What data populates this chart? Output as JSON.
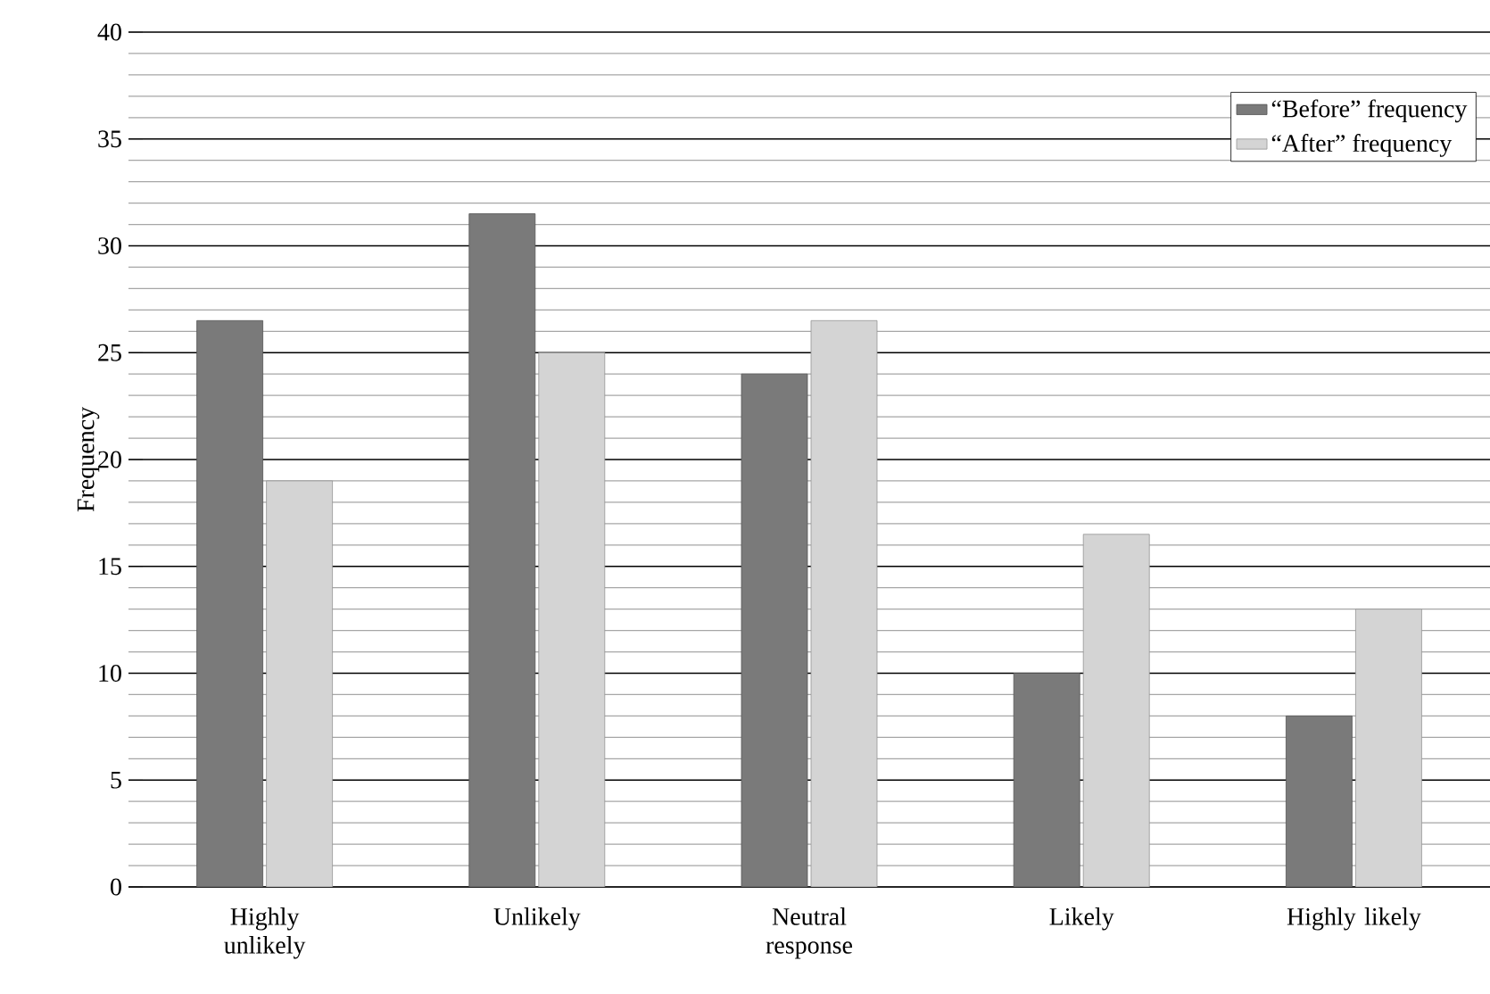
{
  "chart_data": {
    "type": "bar",
    "ylabel": "Frequency",
    "categories": [
      "Highly unlikely",
      "Unlikely",
      "Neutral response",
      "Likely",
      "Highly likely"
    ],
    "series": [
      {
        "name": "“Before” frequency",
        "color": "#7a7a7a",
        "values": [
          26.5,
          31.5,
          24,
          10,
          8
        ]
      },
      {
        "name": "“After” frequency",
        "color": "#d4d4d4",
        "values": [
          19,
          25,
          26.5,
          16.5,
          13
        ]
      }
    ],
    "ylim": [
      0,
      40
    ],
    "yticks": [
      0,
      5,
      10,
      15,
      20,
      25,
      30,
      35,
      40
    ],
    "grid": "y",
    "legend": "top right"
  }
}
